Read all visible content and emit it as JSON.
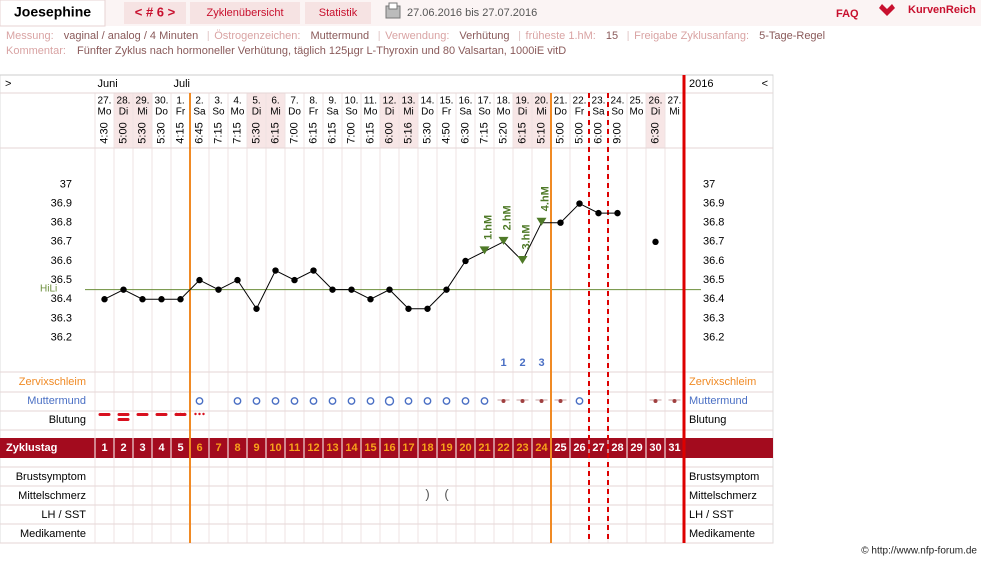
{
  "header": {
    "name": "Joesephine",
    "cycle": "< # 6 >",
    "tabs": [
      "Zyklenübersicht",
      "Statistik"
    ],
    "date_range": "27.06.2016 bis 27.07.2016",
    "faq": "FAQ",
    "logo": "KurvenReich"
  },
  "info": {
    "fields": [
      {
        "label": "Messung:",
        "value": "vaginal / analog / 4 Minuten"
      },
      {
        "label": "Östrogenzeichen:",
        "value": "Muttermund"
      },
      {
        "label": "Verwendung:",
        "value": "Verhütung"
      },
      {
        "label": "früheste 1.hM:",
        "value": "15"
      },
      {
        "label": "Freigabe Zyklusanfang:",
        "value": "5-Tage-Regel"
      }
    ],
    "comment_label": "Kommentar:",
    "comment": "Fünfter Zyklus nach hormoneller Verhütung, täglich 125µgr L-Thyroxin und 80 Valsartan, 1000iE vitD"
  },
  "chart_data": {
    "type": "line",
    "categories": [
      1,
      2,
      3,
      4,
      5,
      6,
      7,
      8,
      9,
      10,
      11,
      12,
      13,
      14,
      15,
      16,
      17,
      18,
      19,
      20,
      21,
      22,
      23,
      24,
      25,
      26,
      27,
      28,
      29,
      30,
      31
    ],
    "dates": [
      "27.",
      "28.",
      "29.",
      "30.",
      "1.",
      "2.",
      "3.",
      "4.",
      "5.",
      "6.",
      "7.",
      "8.",
      "9.",
      "10.",
      "11.",
      "12.",
      "13.",
      "14.",
      "15.",
      "16.",
      "17.",
      "18.",
      "19.",
      "20.",
      "21.",
      "22.",
      "23.",
      "24.",
      "25.",
      "26.",
      "27."
    ],
    "weekdays": [
      "Mo",
      "Di",
      "Mi",
      "Do",
      "Fr",
      "Sa",
      "So",
      "Mo",
      "Di",
      "Mi",
      "Do",
      "Fr",
      "Sa",
      "So",
      "Mo",
      "Di",
      "Mi",
      "Do",
      "Fr",
      "Sa",
      "So",
      "Mo",
      "Di",
      "Mi",
      "Do",
      "Fr",
      "Sa",
      "So",
      "Mo",
      "Di",
      "Mi"
    ],
    "times": [
      "4:30",
      "5:00",
      "5:30",
      "5:30",
      "4:15",
      "6:45",
      "7:15",
      "7:15",
      "5:30",
      "6:15",
      "7:00",
      "6:15",
      "6:15",
      "7:00",
      "6:15",
      "6:00",
      "5:16",
      "5:30",
      "4:50",
      "6:30",
      "7:15",
      "5:20",
      "6:15",
      "5:10",
      "5:00",
      "5:00",
      "6:00",
      "9:00",
      null,
      "6:30",
      null
    ],
    "months": [
      {
        "label": "Juni",
        "x": 1
      },
      {
        "label": "Juli",
        "x": 5
      }
    ],
    "year": "2016",
    "nav_left": ">",
    "nav_right": "<",
    "values": [
      36.4,
      36.45,
      36.4,
      36.4,
      36.4,
      36.5,
      36.45,
      36.5,
      36.35,
      36.55,
      36.5,
      36.55,
      36.45,
      36.45,
      36.4,
      36.45,
      36.35,
      36.35,
      36.45,
      36.6,
      36.65,
      36.7,
      36.6,
      36.8,
      36.8,
      36.9,
      36.85,
      36.85,
      null,
      36.7,
      null
    ],
    "color": "#000000",
    "ylim": [
      36.03,
      37.18
    ],
    "yticks": [
      36.2,
      36.3,
      36.4,
      36.5,
      36.6,
      36.7,
      36.8,
      36.9,
      37
    ],
    "coverline": {
      "label": "HiLi",
      "value": 36.45,
      "color": "#6b8e3a"
    },
    "annotations": [
      {
        "text": "1.hM",
        "x": 21
      },
      {
        "text": "2.hM",
        "x": 22
      },
      {
        "text": "3.hM",
        "x": 23
      },
      {
        "text": "4.hM",
        "x": 24
      }
    ],
    "counts": [
      {
        "value": 1,
        "x": 22
      },
      {
        "value": 2,
        "x": 23
      },
      {
        "value": 3,
        "x": 24
      }
    ],
    "markers": [
      {
        "x": 5.5,
        "color": "#f08a24",
        "dash": false
      },
      {
        "x": 24.5,
        "color": "#f08a24",
        "dash": false
      },
      {
        "x": 26.5,
        "color": "#dd0000",
        "dash": true
      },
      {
        "x": 27.5,
        "color": "#dd0000",
        "dash": true
      }
    ],
    "row_labels": {
      "zervix": "Zervixschleim",
      "muttermund": "Muttermund",
      "blutung": "Blutung",
      "zyklustag": "Zyklustag",
      "brust": "Brustsymptom",
      "mittel": "Mittelschmerz",
      "lh": "LH / SST",
      "medi": "Medikamente"
    },
    "mittelschmerz": [
      {
        "x": 18,
        "text": ")"
      },
      {
        "x": 19,
        "text": "("
      }
    ]
  },
  "footer": "© http://www.nfp-forum.de"
}
